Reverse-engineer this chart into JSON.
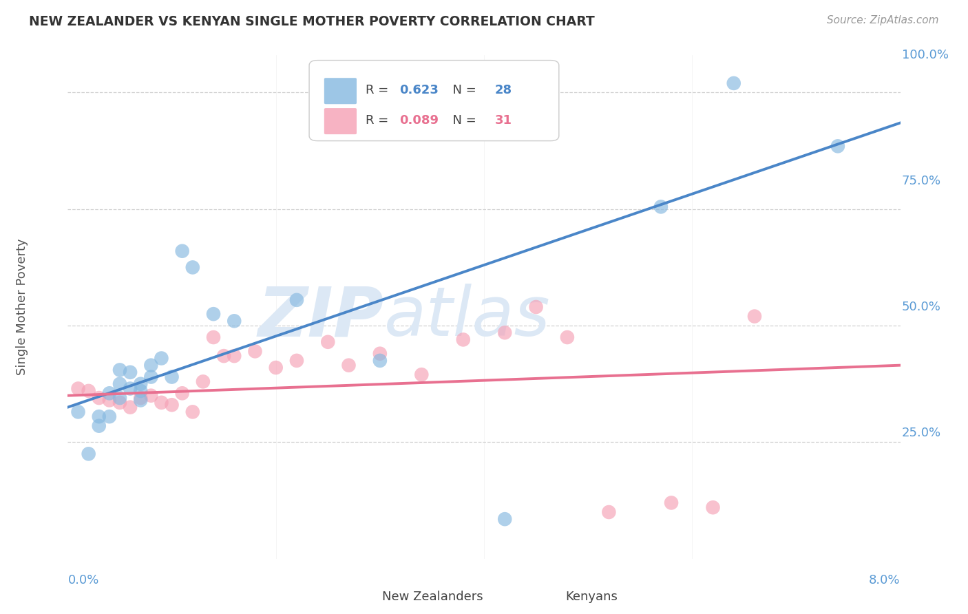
{
  "title": "NEW ZEALANDER VS KENYAN SINGLE MOTHER POVERTY CORRELATION CHART",
  "source": "Source: ZipAtlas.com",
  "ylabel": "Single Mother Poverty",
  "xlim": [
    0.0,
    0.08
  ],
  "ylim": [
    0.0,
    1.08
  ],
  "yticks": [
    0.25,
    0.5,
    0.75,
    1.0
  ],
  "ytick_labels": [
    "25.0%",
    "50.0%",
    "75.0%",
    "100.0%"
  ],
  "nz_R": "0.623",
  "nz_N": "28",
  "ke_R": "0.089",
  "ke_N": "31",
  "nz_color": "#85b8e0",
  "ke_color": "#f5a0b5",
  "nz_line_color": "#4a86c8",
  "ke_line_color": "#e87090",
  "right_label_color": "#5b9bd5",
  "background_color": "#ffffff",
  "grid_color": "#d0d0d0",
  "watermark_text": "ZIPatlas",
  "watermark_color": "#dce8f5",
  "nz_scatter_x": [
    0.001,
    0.002,
    0.003,
    0.003,
    0.004,
    0.004,
    0.005,
    0.005,
    0.005,
    0.006,
    0.006,
    0.007,
    0.007,
    0.007,
    0.008,
    0.008,
    0.009,
    0.01,
    0.011,
    0.012,
    0.014,
    0.016,
    0.022,
    0.03,
    0.042,
    0.057,
    0.064,
    0.074
  ],
  "nz_scatter_y": [
    0.315,
    0.225,
    0.305,
    0.285,
    0.355,
    0.305,
    0.375,
    0.405,
    0.345,
    0.365,
    0.4,
    0.375,
    0.36,
    0.34,
    0.39,
    0.415,
    0.43,
    0.39,
    0.66,
    0.625,
    0.525,
    0.51,
    0.555,
    0.425,
    0.085,
    0.755,
    1.02,
    0.885
  ],
  "ke_scatter_x": [
    0.001,
    0.002,
    0.003,
    0.004,
    0.005,
    0.006,
    0.007,
    0.008,
    0.009,
    0.01,
    0.011,
    0.012,
    0.013,
    0.014,
    0.015,
    0.016,
    0.018,
    0.02,
    0.022,
    0.025,
    0.027,
    0.03,
    0.034,
    0.038,
    0.042,
    0.045,
    0.048,
    0.052,
    0.058,
    0.062,
    0.066
  ],
  "ke_scatter_y": [
    0.365,
    0.36,
    0.345,
    0.34,
    0.335,
    0.325,
    0.345,
    0.35,
    0.335,
    0.33,
    0.355,
    0.315,
    0.38,
    0.475,
    0.435,
    0.435,
    0.445,
    0.41,
    0.425,
    0.465,
    0.415,
    0.44,
    0.395,
    0.47,
    0.485,
    0.54,
    0.475,
    0.1,
    0.12,
    0.11,
    0.52
  ],
  "nz_trend_x0": 0.0,
  "nz_trend_y0": 0.325,
  "nz_trend_x1": 0.08,
  "nz_trend_y1": 0.935,
  "ke_trend_x0": 0.0,
  "ke_trend_y0": 0.35,
  "ke_trend_x1": 0.08,
  "ke_trend_y1": 0.415
}
